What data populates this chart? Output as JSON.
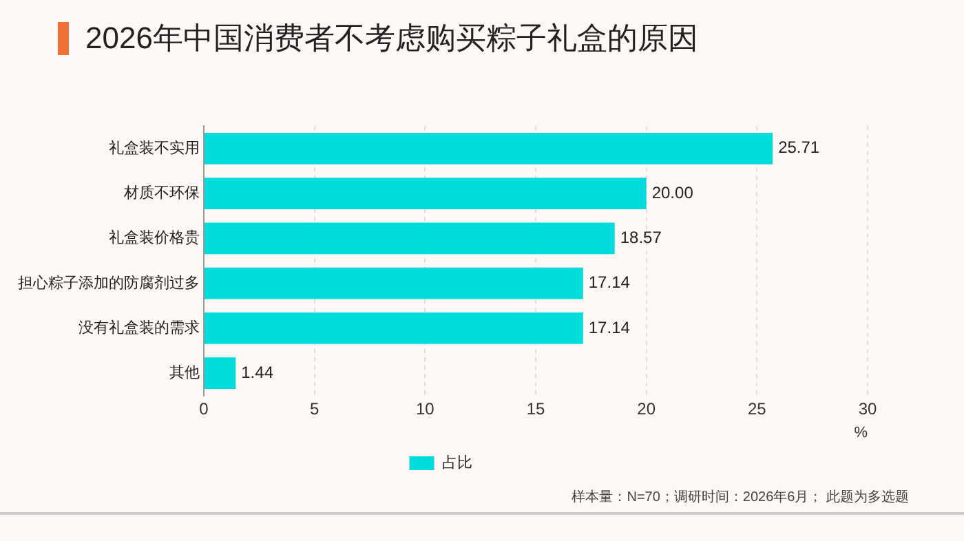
{
  "chart_data": {
    "type": "bar",
    "orientation": "horizontal",
    "title": "2026年中国消费者不考虑购买粽子礼盒的原因",
    "xlabel": "%",
    "categories": [
      "礼盒装不实用",
      "材质不环保",
      "礼盒装价格贵",
      "担心粽子添加的防腐剂过多",
      "没有礼盒装的需求",
      "其他"
    ],
    "series": [
      {
        "name": "占比",
        "color": "#00dcdc",
        "values": [
          25.71,
          20,
          18.57,
          17.14,
          17.14,
          1.44
        ],
        "value_labels": [
          "25.71",
          "20.00",
          "18.57",
          "17.14",
          "17.14",
          "1.44"
        ]
      }
    ],
    "xlim": [
      0,
      30
    ],
    "xticks": [
      0,
      5,
      10,
      15,
      20,
      25,
      30
    ],
    "grid": "x",
    "legend": "bottom",
    "annotations": [
      "样本量：N=70；调研时间：2026年6月； 此题为多选题"
    ]
  }
}
